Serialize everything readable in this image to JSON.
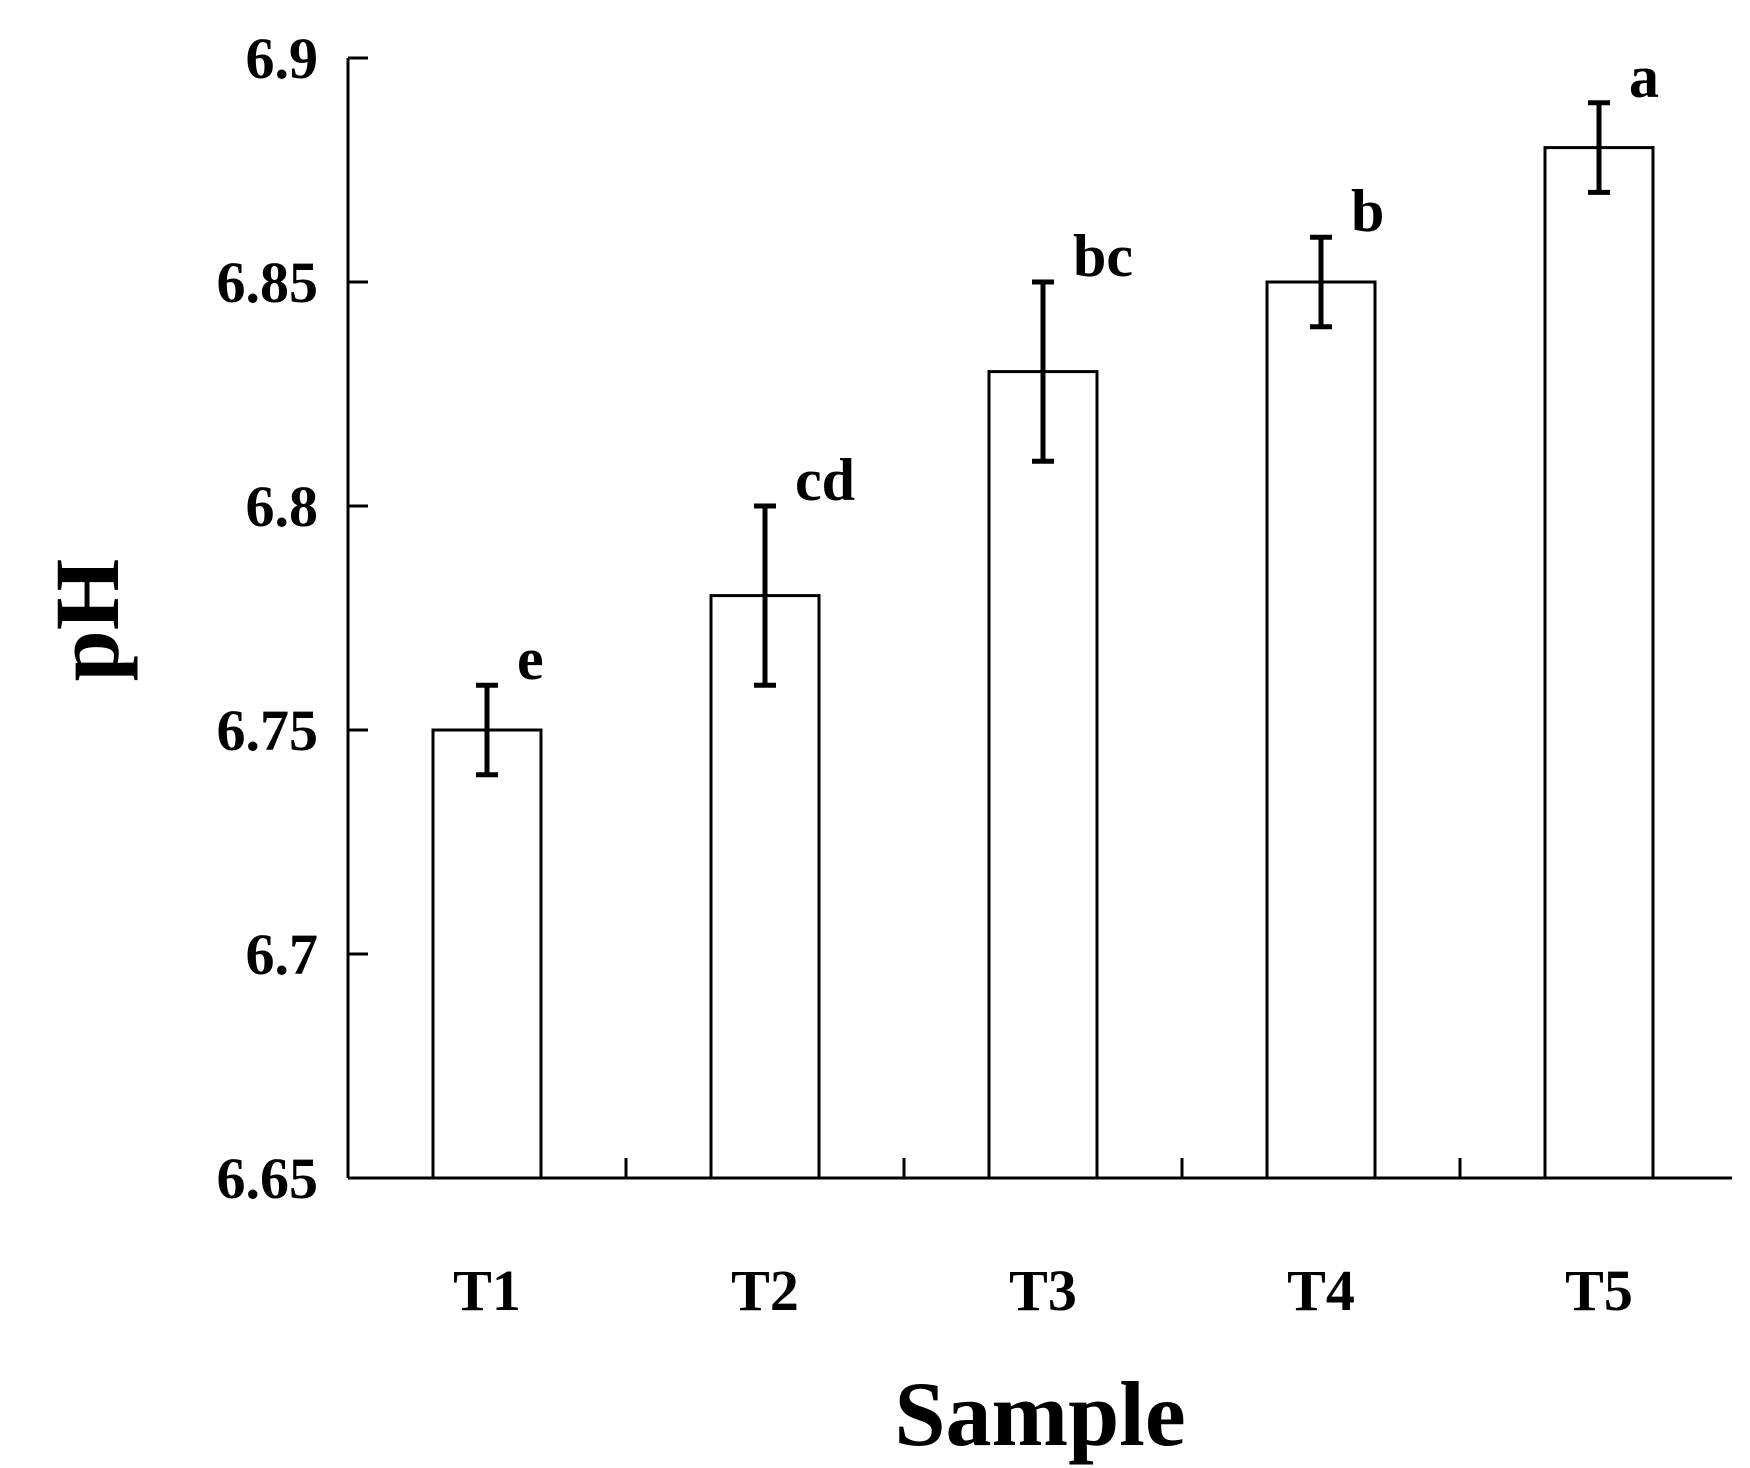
{
  "chart_data": {
    "type": "bar",
    "categories": [
      "T1",
      "T2",
      "T3",
      "T4",
      "T5"
    ],
    "values": [
      6.75,
      6.78,
      6.83,
      6.85,
      6.88
    ],
    "error": [
      0.01,
      0.02,
      0.02,
      0.01,
      0.01
    ],
    "significance": [
      "e",
      "cd",
      "bc",
      "b",
      "a"
    ],
    "xlabel": "Sample",
    "ylabel": "pH",
    "ylim": [
      6.65,
      6.9
    ],
    "yticks": [
      "6.65",
      "6.7",
      "6.75",
      "6.8",
      "6.85",
      "6.9"
    ],
    "grid": false,
    "bar_fill": "#ffffff",
    "bar_stroke": "#000000"
  }
}
